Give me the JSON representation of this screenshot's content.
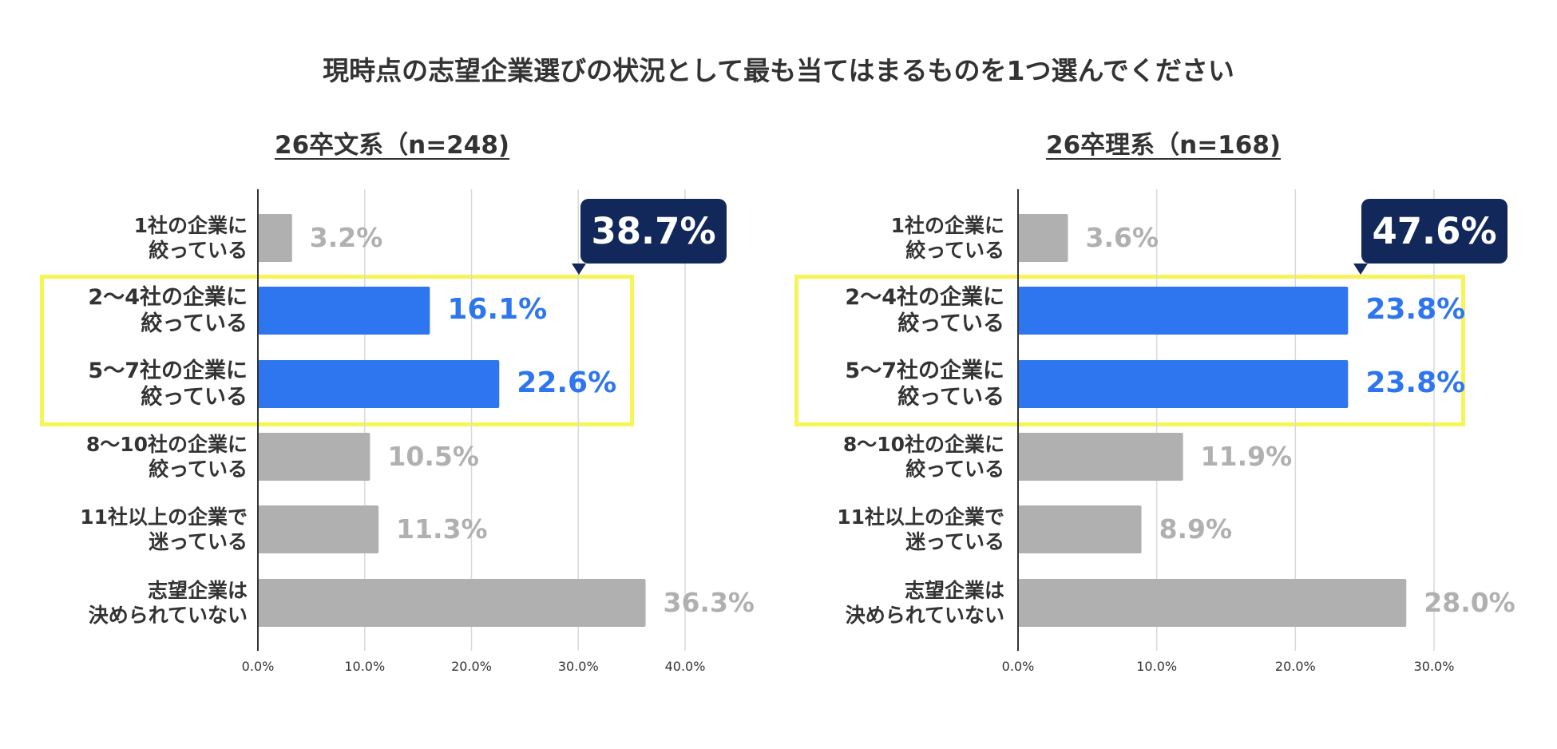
{
  "title": "現時点の志望企業選びの状況として最も当てはまるものを1つ選んでください",
  "colors": {
    "highlight_bar": "#2e75f0",
    "other_bar": "#b0b0b0",
    "highlight_value": "#2e75f0",
    "other_value": "#b0b0b0",
    "highlight_box": "#f7f556",
    "callout_bg": "#13285a",
    "gridline": "#d9d9d9",
    "axis": "#333333"
  },
  "chart_data": [
    {
      "type": "bar",
      "orientation": "horizontal",
      "title": "26卒文系（n=248)",
      "categories": [
        [
          "1社の企業に",
          "絞っている"
        ],
        [
          "2～4社の企業に",
          "絞っている"
        ],
        [
          "5～7社の企業に",
          "絞っている"
        ],
        [
          "8～10社の企業に",
          "絞っている"
        ],
        [
          "11社以上の企業で",
          "迷っている"
        ],
        [
          "志望企業は",
          "決められていない"
        ]
      ],
      "values": [
        3.2,
        16.1,
        22.6,
        10.5,
        11.3,
        36.3
      ],
      "value_labels": [
        "3.2%",
        "16.1%",
        "22.6%",
        "10.5%",
        "11.3%",
        "36.3%"
      ],
      "highlighted": [
        false,
        true,
        true,
        false,
        false,
        false
      ],
      "callout": "38.7%",
      "xlim": [
        0,
        40
      ],
      "ticks": [
        0,
        10,
        20,
        30,
        40
      ],
      "tick_labels": [
        "0.0%",
        "10.0%",
        "20.0%",
        "30.0%",
        "40.0%"
      ]
    },
    {
      "type": "bar",
      "orientation": "horizontal",
      "title": "26卒理系（n=168)",
      "categories": [
        [
          "1社の企業に",
          "絞っている"
        ],
        [
          "2～4社の企業に",
          "絞っている"
        ],
        [
          "5～7社の企業に",
          "絞っている"
        ],
        [
          "8～10社の企業に",
          "絞っている"
        ],
        [
          "11社以上の企業で",
          "迷っている"
        ],
        [
          "志望企業は",
          "決められていない"
        ]
      ],
      "values": [
        3.6,
        23.8,
        23.8,
        11.9,
        8.9,
        28.0
      ],
      "value_labels": [
        "3.6%",
        "23.8%",
        "23.8%",
        "11.9%",
        "8.9%",
        "28.0%"
      ],
      "highlighted": [
        false,
        true,
        true,
        false,
        false,
        false
      ],
      "callout": "47.6%",
      "xlim": [
        0,
        30
      ],
      "ticks": [
        0,
        10,
        20,
        30
      ],
      "tick_labels": [
        "0.0%",
        "10.0%",
        "20.0%",
        "30.0%"
      ]
    }
  ]
}
